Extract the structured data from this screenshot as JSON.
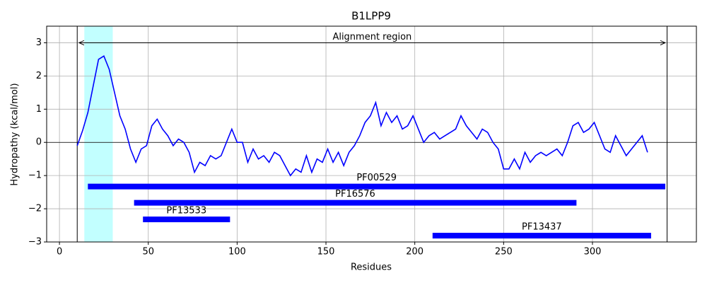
{
  "chart_data": {
    "type": "line",
    "title": "B1LPP9",
    "xlabel": "Residues",
    "ylabel": "Hydropathy (kcal/mol)",
    "color": "#0000ff",
    "x": [
      10,
      13,
      16,
      19,
      22,
      25,
      28,
      31,
      34,
      37,
      40,
      43,
      46,
      49,
      52,
      55,
      58,
      61,
      64,
      67,
      70,
      73,
      76,
      79,
      82,
      85,
      88,
      91,
      94,
      97,
      100,
      103,
      106,
      109,
      112,
      115,
      118,
      121,
      124,
      127,
      130,
      133,
      136,
      139,
      142,
      145,
      148,
      151,
      154,
      157,
      160,
      163,
      166,
      169,
      172,
      175,
      178,
      181,
      184,
      187,
      190,
      193,
      196,
      199,
      202,
      205,
      208,
      211,
      214,
      217,
      220,
      223,
      226,
      229,
      232,
      235,
      238,
      241,
      244,
      247,
      250,
      253,
      256,
      259,
      262,
      265,
      268,
      271,
      274,
      277,
      280,
      283,
      286,
      289,
      292,
      295,
      298,
      301,
      304,
      307,
      310,
      313,
      316,
      319,
      322,
      325,
      328,
      331
    ],
    "values": [
      -0.1,
      0.35,
      0.9,
      1.7,
      2.5,
      2.6,
      2.2,
      1.5,
      0.8,
      0.4,
      -0.2,
      -0.6,
      -0.2,
      -0.1,
      0.5,
      0.7,
      0.4,
      0.2,
      -0.1,
      0.1,
      0.0,
      -0.3,
      -0.9,
      -0.6,
      -0.7,
      -0.4,
      -0.5,
      -0.4,
      0.0,
      0.4,
      0.0,
      0.0,
      -0.6,
      -0.2,
      -0.5,
      -0.4,
      -0.6,
      -0.3,
      -0.4,
      -0.7,
      -1.0,
      -0.8,
      -0.9,
      -0.4,
      -0.9,
      -0.5,
      -0.6,
      -0.2,
      -0.6,
      -0.3,
      -0.7,
      -0.3,
      -0.1,
      0.2,
      0.6,
      0.8,
      1.2,
      0.5,
      0.9,
      0.6,
      0.8,
      0.4,
      0.5,
      0.8,
      0.4,
      0.0,
      0.2,
      0.3,
      0.1,
      0.2,
      0.3,
      0.4,
      0.8,
      0.5,
      0.3,
      0.1,
      0.4,
      0.3,
      0.0,
      -0.2,
      -0.8,
      -0.8,
      -0.5,
      -0.8,
      -0.3,
      -0.6,
      -0.4,
      -0.3,
      -0.4,
      -0.3,
      -0.2,
      -0.4,
      0.0,
      0.5,
      0.6,
      0.3,
      0.4,
      0.6,
      0.2,
      -0.2,
      -0.3,
      0.2,
      -0.1,
      -0.4,
      -0.2,
      0.0,
      0.2,
      -0.3
    ],
    "xlim": [
      -7.2,
      358.5
    ],
    "ylim": [
      -3,
      3.5
    ],
    "xticks": [
      0,
      50,
      100,
      150,
      200,
      250,
      300
    ],
    "yticks": [
      {
        "value": -3,
        "label": "−3"
      },
      {
        "value": -2,
        "label": "−2"
      },
      {
        "value": -1,
        "label": "−1"
      },
      0,
      1,
      2,
      3
    ],
    "grid": true,
    "hline": 0,
    "vlines": [
      10,
      342
    ],
    "span": {
      "from": 14,
      "to": 30,
      "color": "#c2ffff"
    },
    "arrow": {
      "label": "Alignment region",
      "from": 11,
      "to": 341,
      "y": 3
    },
    "domains": [
      {
        "name": "PF00529",
        "start": 16,
        "end": 341,
        "y": -1.33
      },
      {
        "name": "PF16576",
        "start": 42,
        "end": 291,
        "y": -1.82
      },
      {
        "name": "PF13533",
        "start": 47,
        "end": 96,
        "y": -2.32
      },
      {
        "name": "PF13437",
        "start": 210,
        "end": 333,
        "y": -2.81
      }
    ],
    "domain_color": "#0000ff"
  }
}
